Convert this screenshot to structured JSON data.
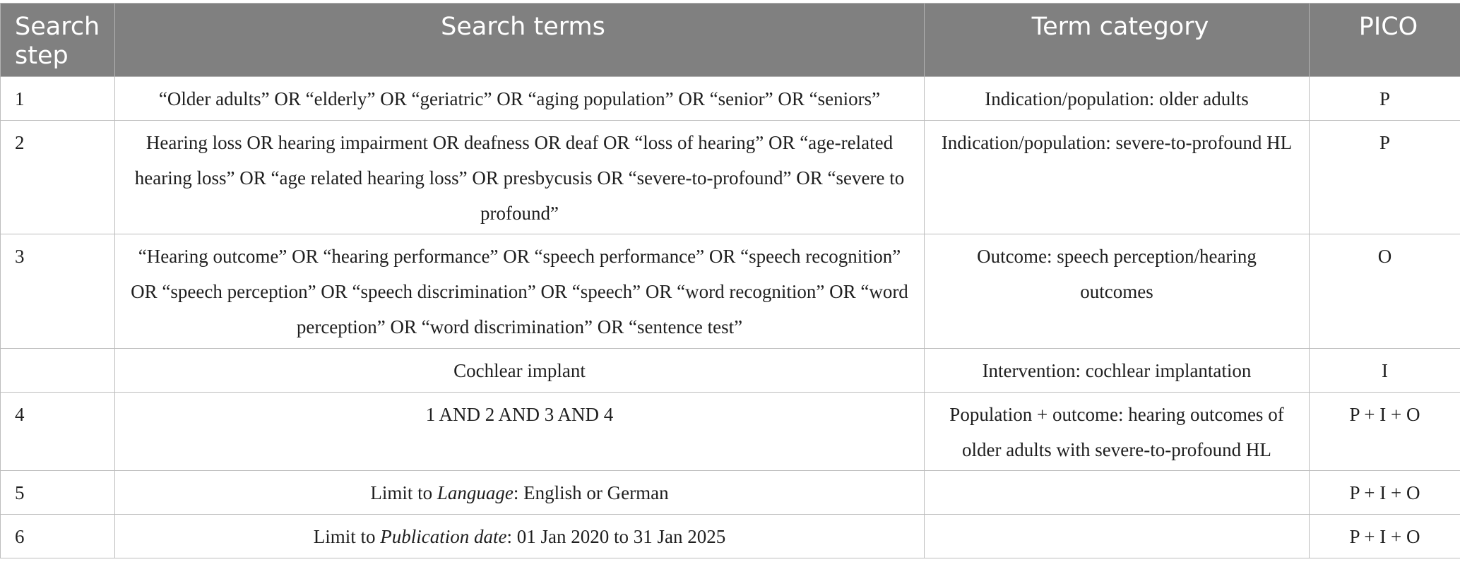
{
  "table": {
    "headers": [
      "Search step",
      "Search terms",
      "Term category",
      "PICO"
    ],
    "rows": [
      {
        "step": "1",
        "terms": "“Older adults” OR “elderly” OR “geriatric” OR “aging population” OR “senior” OR “seniors”",
        "category": "Indication/population: older adults",
        "pico": "P"
      },
      {
        "step": "2",
        "terms": "Hearing loss OR hearing impairment OR deafness OR deaf OR “loss of hearing” OR “age-related hearing loss” OR “age related hearing loss” OR presbycusis OR “severe-to-profound” OR “severe to profound”",
        "category": "Indication/population: severe-to-profound HL",
        "pico": "P"
      },
      {
        "step": "3",
        "terms": "“Hearing outcome” OR “hearing performance” OR “speech performance” OR “speech recognition” OR “speech perception” OR “speech discrimination” OR “speech” OR “word recognition” OR “word perception” OR “word discrimination” OR “sentence test”",
        "category": "Outcome: speech perception/hearing outcomes",
        "pico": "O"
      },
      {
        "step": "",
        "terms": "Cochlear implant",
        "category": "Intervention: cochlear implantation",
        "pico": "I"
      },
      {
        "step": "4",
        "terms": "1 AND 2 AND 3 AND 4",
        "category": "Population + outcome: hearing outcomes of older adults with severe-to-profound HL",
        "pico": "P + I + O"
      },
      {
        "step": "5",
        "terms_prefix": "Limit to ",
        "terms_italic": "Language",
        "terms_suffix": ": English or German",
        "category": "",
        "pico": "P + I + O"
      },
      {
        "step": "6",
        "terms_prefix": "Limit to ",
        "terms_italic": "Publication date",
        "terms_suffix": ": 01 Jan 2020 to 31 Jan 2025",
        "category": "",
        "pico": "P + I + O"
      }
    ]
  }
}
